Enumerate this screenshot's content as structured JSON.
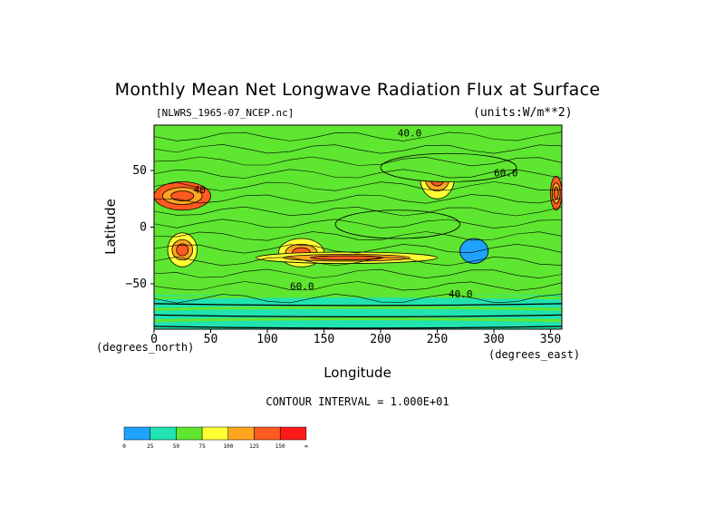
{
  "chart_data": {
    "type": "heatmap",
    "title": "Monthly Mean Net Longwave Radiation Flux at Surface",
    "dataset": "[NLWRS_1965-07_NCEP.nc]",
    "units": "(units:W/m**2)",
    "xlabel": "Longitude",
    "ylabel": "Latitude",
    "x_unit_label": "(degrees_east)",
    "y_unit_label": "(degrees_north)",
    "xlim": [
      0,
      360
    ],
    "ylim": [
      -90,
      90
    ],
    "x_ticks": [
      0,
      50,
      100,
      150,
      200,
      250,
      300,
      350
    ],
    "y_ticks": [
      50,
      0,
      -50
    ],
    "contour_interval": "CONTOUR INTERVAL = 1.000E+01",
    "colorbar": {
      "colors": [
        "#1fa3ff",
        "#20e3b0",
        "#5fe630",
        "#ffff33",
        "#ffa51f",
        "#ff5a1f",
        "#ff1a1a"
      ],
      "labels": [
        "0",
        "25",
        "50",
        "75",
        "100",
        "125",
        "150",
        "∞"
      ]
    },
    "contour_labels": [
      "40.0",
      "40",
      "60.0",
      "60.0",
      "40.0"
    ],
    "regions": [
      {
        "lon": [
          0,
          360
        ],
        "lat": [
          -90,
          90
        ],
        "level": "25-50"
      },
      {
        "lon": [
          0,
          50
        ],
        "lat": [
          15,
          40
        ],
        "level": "100-150"
      },
      {
        "lon": [
          235,
          265
        ],
        "lat": [
          25,
          60
        ],
        "level": "75-125"
      },
      {
        "lon": [
          350,
          360
        ],
        "lat": [
          15,
          45
        ],
        "level": "100-125"
      },
      {
        "lon": [
          12,
          38
        ],
        "lat": [
          -35,
          -5
        ],
        "level": "75-125"
      },
      {
        "lon": [
          110,
          150
        ],
        "lat": [
          -35,
          -10
        ],
        "level": "75-125"
      },
      {
        "lon": [
          90,
          250
        ],
        "lat": [
          -32,
          -22
        ],
        "level": "75-100"
      },
      {
        "lon": [
          270,
          295
        ],
        "lat": [
          -32,
          -10
        ],
        "level": "0-25"
      },
      {
        "lon": [
          160,
          270
        ],
        "lat": [
          -10,
          15
        ],
        "level": "50-75"
      },
      {
        "lon": [
          200,
          320
        ],
        "lat": [
          40,
          65
        ],
        "level": "50-75"
      },
      {
        "lon": [
          0,
          360
        ],
        "lat": [
          -90,
          -60
        ],
        "level": "mixed"
      }
    ]
  }
}
